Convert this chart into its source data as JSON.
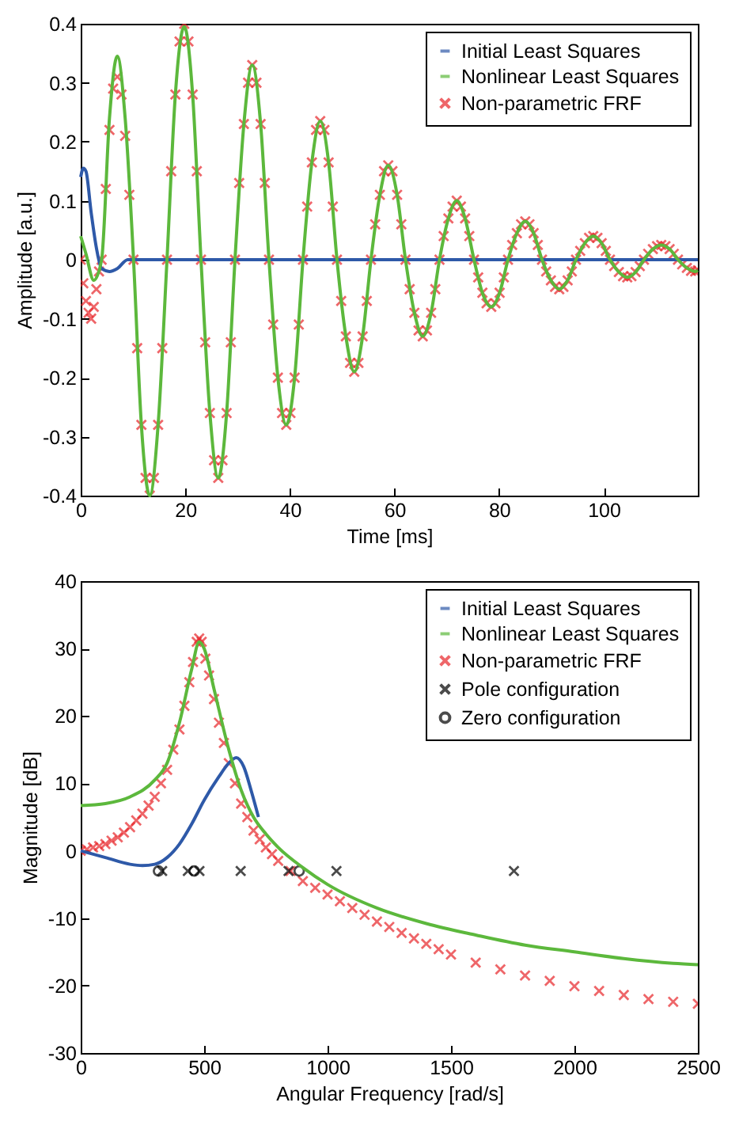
{
  "chart_data": [
    {
      "type": "line",
      "xlabel": "Time [ms]",
      "ylabel": "Amplitude [a.u.]",
      "xlim": [
        0,
        118
      ],
      "ylim": [
        -0.4,
        0.4
      ],
      "xticks": [
        0,
        20,
        40,
        60,
        80,
        100
      ],
      "yticks": [
        -0.4,
        -0.3,
        -0.2,
        -0.1,
        0,
        0.1,
        0.2,
        0.3,
        0.4
      ],
      "grid": false,
      "legend": "top right",
      "series": [
        {
          "name": "Initial Least Squares",
          "color": "#2e59a8",
          "type": "line",
          "x": [
            0,
            0.5,
            1,
            2,
            3,
            4,
            5.5,
            7,
            9,
            20,
            60,
            118
          ],
          "values": [
            0.14,
            0.155,
            0.15,
            0.08,
            0.02,
            -0.015,
            -0.02,
            -0.015,
            0,
            0,
            0,
            0
          ]
        },
        {
          "name": "Nonlinear Least Squares",
          "color": "#5cb83c",
          "type": "line",
          "x": [
            0,
            1,
            2.5,
            4,
            5.5,
            7,
            8.5,
            10.1,
            11.6,
            13.2,
            14.8,
            16.5,
            18.1,
            19.8,
            21.4,
            23.0,
            24.7,
            26.3,
            27.9,
            29.5,
            31.2,
            32.8,
            34.4,
            36.0,
            37.7,
            39.3,
            40.9,
            42.5,
            44.2,
            45.8,
            47.4,
            49.0,
            50.7,
            52.3,
            53.9,
            55.5,
            57.2,
            58.8,
            60.5,
            62.1,
            63.8,
            65.4,
            67.0,
            68.6,
            70.3,
            71.9,
            73.5,
            75.2,
            76.8,
            78.5,
            80.1,
            81.7,
            83.4,
            85.0,
            86.6,
            88.2,
            89.9,
            91.5,
            93.1,
            94.7,
            96.4,
            98.0,
            99.6,
            101.2,
            102.9,
            104.5,
            106.1,
            107.7,
            109.4,
            111.0,
            112.6,
            114.2,
            115.9,
            117.5,
            118
          ],
          "values": [
            0.04,
            0.01,
            -0.035,
            0,
            0.24,
            0.345,
            0.24,
            0,
            -0.28,
            -0.4,
            -0.28,
            0,
            0.28,
            0.395,
            0.28,
            0,
            -0.26,
            -0.37,
            -0.26,
            0,
            0.23,
            0.33,
            0.23,
            0,
            -0.2,
            -0.28,
            -0.2,
            0,
            0.165,
            0.235,
            0.165,
            0,
            -0.13,
            -0.19,
            -0.13,
            0,
            0.11,
            0.16,
            0.11,
            0,
            -0.09,
            -0.13,
            -0.09,
            0,
            0.07,
            0.1,
            0.07,
            0,
            -0.056,
            -0.08,
            -0.056,
            0,
            0.045,
            0.065,
            0.045,
            0,
            -0.035,
            -0.05,
            -0.035,
            0,
            0.028,
            0.04,
            0.028,
            0,
            -0.021,
            -0.03,
            -0.021,
            0,
            0.018,
            0.025,
            0.018,
            0,
            -0.014,
            -0.02,
            -0.018
          ]
        },
        {
          "name": "Non-parametric FRF",
          "color": "#e8262a",
          "type": "scatter",
          "marker": "cross",
          "x": [
            0,
            0.5,
            1,
            1.5,
            2,
            2.5,
            3,
            3.5,
            4,
            4.8,
            5.5,
            6.2,
            7,
            7.8,
            8.5,
            9.3,
            10.1,
            10.8,
            11.6,
            12.4,
            13.2,
            14.0,
            14.8,
            15.6,
            16.5,
            17.3,
            18.1,
            18.9,
            19.8,
            20.6,
            21.4,
            22.2,
            23.0,
            23.8,
            24.7,
            25.5,
            26.3,
            27.1,
            27.9,
            28.7,
            29.5,
            30.3,
            31.2,
            32.0,
            32.8,
            33.6,
            34.4,
            35.2,
            36.0,
            36.8,
            37.7,
            38.5,
            39.3,
            40.1,
            40.9,
            41.7,
            42.5,
            43.3,
            44.2,
            45.0,
            45.8,
            46.6,
            47.4,
            48.2,
            49.0,
            49.8,
            50.7,
            51.5,
            52.3,
            53.1,
            53.9,
            54.7,
            55.5,
            56.3,
            57.2,
            58.0,
            58.8,
            59.6,
            60.5,
            61.3,
            62.1,
            62.9,
            63.8,
            64.6,
            65.4,
            66.2,
            67.0,
            67.8,
            68.6,
            69.4,
            70.3,
            71.1,
            71.9,
            72.7,
            73.5,
            74.3,
            75.2,
            76.0,
            76.8,
            77.6,
            78.5,
            79.3,
            80.1,
            80.9,
            81.7,
            82.5,
            83.4,
            84.2,
            85.0,
            85.8,
            86.6,
            87.4,
            88.2,
            89.0,
            89.9,
            90.7,
            91.5,
            92.3,
            93.1,
            93.9,
            94.7,
            95.5,
            96.4,
            97.2,
            98.0,
            98.8,
            99.6,
            100.4,
            101.2,
            102.0,
            102.9,
            103.7,
            104.5,
            105.3,
            106.1,
            106.9,
            107.7,
            108.5,
            109.4,
            110.2,
            111.0,
            111.8,
            112.6,
            113.4,
            114.2,
            115.0,
            115.9,
            116.7,
            117.5,
            118
          ],
          "values": [
            0,
            -0.04,
            -0.07,
            -0.09,
            -0.1,
            -0.08,
            -0.05,
            -0.02,
            0,
            0.12,
            0.22,
            0.29,
            0.31,
            0.28,
            0.21,
            0.11,
            0,
            -0.15,
            -0.28,
            -0.37,
            -0.4,
            -0.37,
            -0.28,
            -0.15,
            0,
            0.15,
            0.28,
            0.37,
            0.4,
            0.37,
            0.28,
            0.15,
            0,
            -0.14,
            -0.26,
            -0.34,
            -0.37,
            -0.34,
            -0.26,
            -0.14,
            0,
            0.13,
            0.23,
            0.3,
            0.33,
            0.3,
            0.23,
            0.13,
            0,
            -0.11,
            -0.2,
            -0.26,
            -0.28,
            -0.26,
            -0.2,
            -0.11,
            0,
            0.09,
            0.165,
            0.22,
            0.235,
            0.22,
            0.165,
            0.09,
            0,
            -0.07,
            -0.13,
            -0.175,
            -0.19,
            -0.175,
            -0.13,
            -0.07,
            0,
            0.06,
            0.11,
            0.15,
            0.16,
            0.15,
            0.11,
            0.06,
            0,
            -0.05,
            -0.09,
            -0.12,
            -0.13,
            -0.12,
            -0.09,
            -0.05,
            0,
            0.04,
            0.07,
            0.09,
            0.1,
            0.09,
            0.07,
            0.04,
            0,
            -0.03,
            -0.056,
            -0.074,
            -0.08,
            -0.074,
            -0.056,
            -0.03,
            0,
            0.025,
            0.045,
            0.06,
            0.065,
            0.06,
            0.045,
            0.025,
            0,
            -0.02,
            -0.035,
            -0.046,
            -0.05,
            -0.046,
            -0.035,
            -0.02,
            0,
            0.015,
            0.028,
            0.037,
            0.04,
            0.037,
            0.028,
            0.015,
            0,
            -0.011,
            -0.021,
            -0.028,
            -0.03,
            -0.028,
            -0.021,
            -0.011,
            0,
            0.01,
            0.018,
            0.023,
            0.025,
            0.023,
            0.018,
            0.01,
            0,
            -0.008,
            -0.014,
            -0.019,
            -0.02,
            -0.018
          ]
        }
      ]
    },
    {
      "type": "line",
      "xlabel": "Angular Frequency [rad/s]",
      "ylabel": "Magnitude [dB]",
      "xlim": [
        0,
        2500
      ],
      "ylim": [
        -30,
        40
      ],
      "xticks": [
        0,
        500,
        1000,
        1500,
        2000,
        2500
      ],
      "yticks": [
        -30,
        -20,
        -10,
        0,
        10,
        20,
        30,
        40
      ],
      "grid": false,
      "legend": "top right",
      "series": [
        {
          "name": "Initial Least Squares",
          "color": "#2e59a8",
          "type": "line",
          "x": [
            0,
            100,
            200,
            250,
            300,
            350,
            400,
            450,
            500,
            560,
            600,
            630,
            660,
            690,
            720
          ],
          "values": [
            0,
            -1,
            -2,
            -2.2,
            -2,
            -1,
            1,
            4,
            7.5,
            11,
            13,
            13.8,
            12.5,
            9,
            5
          ]
        },
        {
          "name": "Nonlinear Least Squares",
          "color": "#5cb83c",
          "type": "line",
          "x": [
            0,
            100,
            200,
            300,
            350,
            400,
            450,
            480,
            500,
            540,
            600,
            650,
            700,
            750,
            800,
            900,
            1000,
            1200,
            1400,
            1600,
            1800,
            2000,
            2200,
            2400,
            2500
          ],
          "values": [
            6.7,
            7,
            8,
            10.5,
            13,
            19,
            27,
            31,
            30,
            24,
            15,
            9,
            5,
            2.5,
            0.5,
            -2.5,
            -5,
            -8.5,
            -10.8,
            -12.5,
            -14,
            -15,
            -16,
            -16.7,
            -16.9
          ]
        },
        {
          "name": "Non-parametric FRF",
          "color": "#e8262a",
          "type": "scatter",
          "marker": "cross",
          "x": [
            0,
            25,
            50,
            75,
            100,
            125,
            150,
            175,
            200,
            225,
            250,
            275,
            300,
            325,
            350,
            375,
            400,
            420,
            440,
            455,
            470,
            480,
            490,
            505,
            520,
            540,
            560,
            580,
            600,
            625,
            650,
            675,
            700,
            725,
            750,
            775,
            800,
            850,
            900,
            950,
            1000,
            1050,
            1100,
            1150,
            1200,
            1250,
            1300,
            1350,
            1400,
            1450,
            1500,
            1600,
            1700,
            1800,
            1900,
            2000,
            2100,
            2200,
            2300,
            2400,
            2500
          ],
          "values": [
            0,
            0.2,
            0.5,
            0.7,
            1,
            1.5,
            2,
            2.7,
            3.5,
            4.5,
            5.5,
            6.7,
            8,
            10,
            12,
            15,
            18,
            21.5,
            25,
            28,
            31,
            31.5,
            31,
            28.5,
            26,
            22.5,
            19,
            16,
            13,
            10,
            7,
            5,
            3,
            1.7,
            0.5,
            -0.5,
            -1.5,
            -3,
            -4.5,
            -5.5,
            -6.5,
            -7.5,
            -8.5,
            -9.5,
            -10.5,
            -11.3,
            -12.2,
            -13,
            -13.8,
            -14.6,
            -15.4,
            -16.6,
            -17.6,
            -18.5,
            -19.3,
            -20.1,
            -20.8,
            -21.4,
            -22,
            -22.4,
            -22.7
          ]
        },
        {
          "name": "Pole configuration",
          "color": "#000000",
          "type": "scatter",
          "marker": "cross",
          "x": [
            330,
            434,
            481,
            648,
            842,
            1036,
            1755
          ],
          "values": [
            -3,
            -3,
            -3,
            -3,
            -3,
            -3,
            -3
          ]
        },
        {
          "name": "Zero configuration",
          "color": "#000000",
          "type": "scatter",
          "marker": "circle",
          "x": [
            315,
            460,
            885
          ],
          "values": [
            -3,
            -3,
            -3
          ]
        }
      ]
    }
  ]
}
